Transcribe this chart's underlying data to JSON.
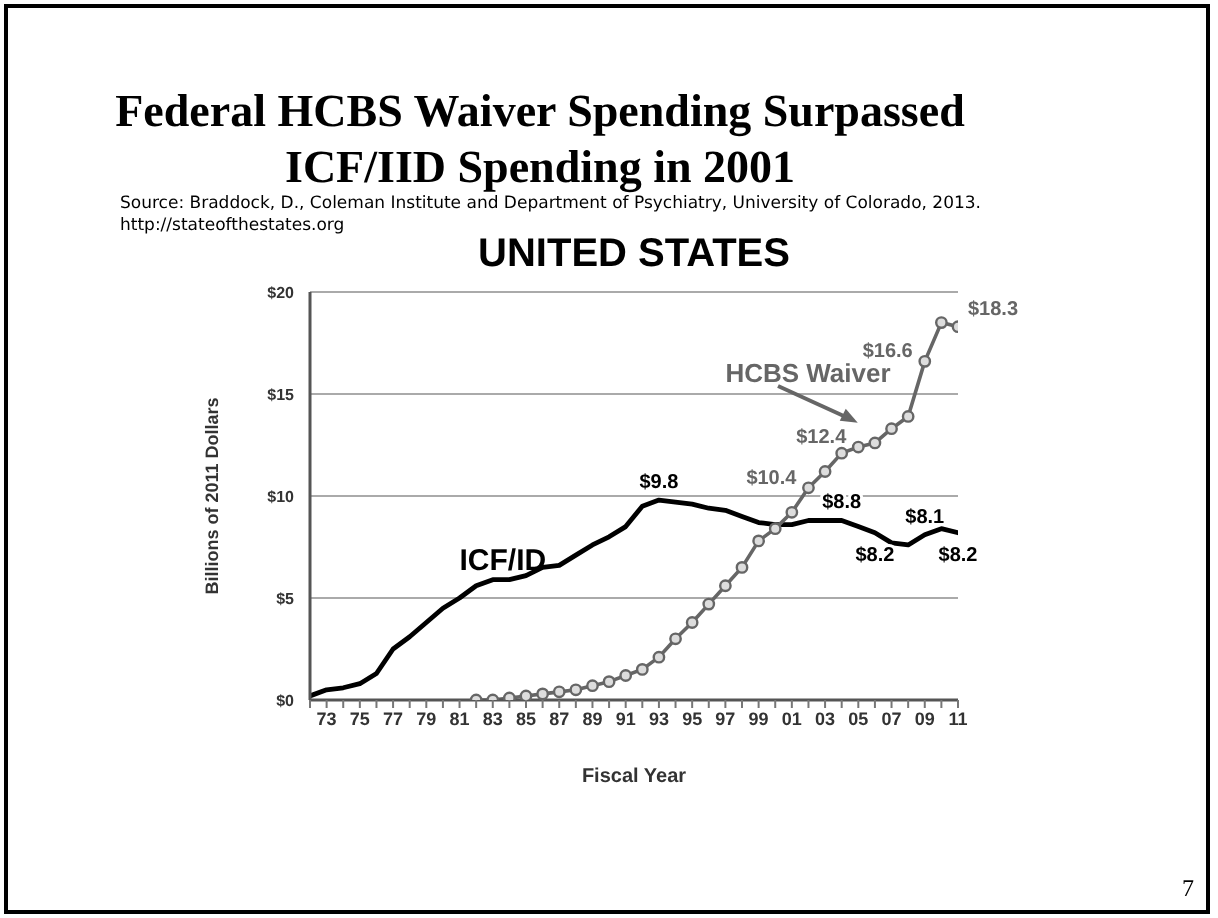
{
  "chart_data": {
    "type": "line",
    "title": "Federal HCBS Waiver Spending Surpassed ICF/IID Spending in 2001",
    "subtitle": "UNITED STATES",
    "xlabel": "Fiscal Year",
    "ylabel": "Billions of 2011 Dollars",
    "annotations": [
      "Source: Braddock, D., Coleman Institute and Department of Psychiatry, University of Colorado, 2013. http://stateofthestates.org",
      "7"
    ],
    "xlim": [
      1972,
      2011
    ],
    "xticks": [
      {
        "value": 1972,
        "label": null
      },
      {
        "value": 1973,
        "label": "73"
      },
      {
        "value": 1974,
        "label": null
      },
      {
        "value": 1975,
        "label": "75"
      },
      {
        "value": 1976,
        "label": null
      },
      {
        "value": 1977,
        "label": "77"
      },
      {
        "value": 1978,
        "label": null
      },
      {
        "value": 1979,
        "label": "79"
      },
      {
        "value": 1980,
        "label": null
      },
      {
        "value": 1981,
        "label": "81"
      },
      {
        "value": 1982,
        "label": null
      },
      {
        "value": 1983,
        "label": "83"
      },
      {
        "value": 1984,
        "label": null
      },
      {
        "value": 1985,
        "label": "85"
      },
      {
        "value": 1986,
        "label": null
      },
      {
        "value": 1987,
        "label": "87"
      },
      {
        "value": 1988,
        "label": null
      },
      {
        "value": 1989,
        "label": "89"
      },
      {
        "value": 1990,
        "label": null
      },
      {
        "value": 1991,
        "label": "91"
      },
      {
        "value": 1992,
        "label": null
      },
      {
        "value": 1993,
        "label": "93"
      },
      {
        "value": 1994,
        "label": null
      },
      {
        "value": 1995,
        "label": "95"
      },
      {
        "value": 1996,
        "label": null
      },
      {
        "value": 1997,
        "label": "97"
      },
      {
        "value": 1998,
        "label": null
      },
      {
        "value": 1999,
        "label": "99"
      },
      {
        "value": 2000,
        "label": null
      },
      {
        "value": 2001,
        "label": "01"
      },
      {
        "value": 2002,
        "label": null
      },
      {
        "value": 2003,
        "label": "03"
      },
      {
        "value": 2004,
        "label": null
      },
      {
        "value": 2005,
        "label": "05"
      },
      {
        "value": 2006,
        "label": null
      },
      {
        "value": 2007,
        "label": "07"
      },
      {
        "value": 2008,
        "label": null
      },
      {
        "value": 2009,
        "label": "09"
      },
      {
        "value": 2010,
        "label": null
      },
      {
        "value": 2011,
        "label": "11"
      }
    ],
    "ylim": [
      0,
      20
    ],
    "yticks": [
      {
        "value": 0,
        "label": "$0"
      },
      {
        "value": 5,
        "label": "$5"
      },
      {
        "value": 10,
        "label": "$10"
      },
      {
        "value": 15,
        "label": "$15"
      },
      {
        "value": 20,
        "label": "$20"
      }
    ],
    "grid": "y",
    "series": [
      {
        "name": "ICF/ID",
        "color": "#000000",
        "marker": "none",
        "x": [
          1972,
          1973,
          1974,
          1975,
          1976,
          1977,
          1978,
          1979,
          1980,
          1981,
          1982,
          1983,
          1984,
          1985,
          1986,
          1987,
          1988,
          1989,
          1990,
          1991,
          1992,
          1993,
          1994,
          1995,
          1996,
          1997,
          1998,
          1999,
          2000,
          2001,
          2002,
          2003,
          2004,
          2005,
          2006,
          2007,
          2008,
          2009,
          2010,
          2011
        ],
        "values": [
          0.2,
          0.5,
          0.6,
          0.8,
          1.3,
          2.5,
          3.1,
          3.8,
          4.5,
          5.0,
          5.6,
          5.9,
          5.9,
          6.1,
          6.5,
          6.6,
          7.1,
          7.6,
          8.0,
          8.5,
          9.5,
          9.8,
          9.7,
          9.6,
          9.4,
          9.3,
          9.0,
          8.7,
          8.6,
          8.6,
          8.8,
          8.8,
          8.8,
          8.5,
          8.2,
          7.7,
          7.6,
          8.1,
          8.4,
          8.2
        ],
        "value_labels": [
          null,
          null,
          null,
          null,
          null,
          null,
          null,
          null,
          null,
          null,
          null,
          null,
          null,
          null,
          null,
          null,
          null,
          null,
          null,
          null,
          null,
          "$9.8",
          null,
          null,
          null,
          null,
          null,
          null,
          null,
          null,
          null,
          null,
          "$8.8",
          null,
          "$8.2",
          null,
          null,
          "$8.1",
          null,
          "$8.2"
        ]
      },
      {
        "name": "HCBS Waiver",
        "color": "#666666",
        "marker": "circle",
        "x": [
          1982,
          1983,
          1984,
          1985,
          1986,
          1987,
          1988,
          1989,
          1990,
          1991,
          1992,
          1993,
          1994,
          1995,
          1996,
          1997,
          1998,
          1999,
          2000,
          2001,
          2002,
          2003,
          2004,
          2005,
          2006,
          2007,
          2008,
          2009,
          2010,
          2011
        ],
        "values": [
          0.0,
          0.0,
          0.1,
          0.2,
          0.3,
          0.4,
          0.5,
          0.7,
          0.9,
          1.2,
          1.5,
          2.1,
          3.0,
          3.8,
          4.7,
          5.6,
          6.5,
          7.8,
          8.4,
          9.2,
          10.4,
          11.2,
          12.1,
          12.4,
          12.6,
          13.3,
          13.9,
          16.6,
          18.5,
          18.3
        ],
        "value_labels": [
          null,
          null,
          null,
          null,
          null,
          null,
          null,
          null,
          null,
          null,
          null,
          null,
          null,
          null,
          null,
          null,
          null,
          null,
          null,
          null,
          "$10.4",
          null,
          null,
          "$12.4",
          null,
          null,
          null,
          "$16.6",
          null,
          "$18.3"
        ]
      }
    ]
  }
}
